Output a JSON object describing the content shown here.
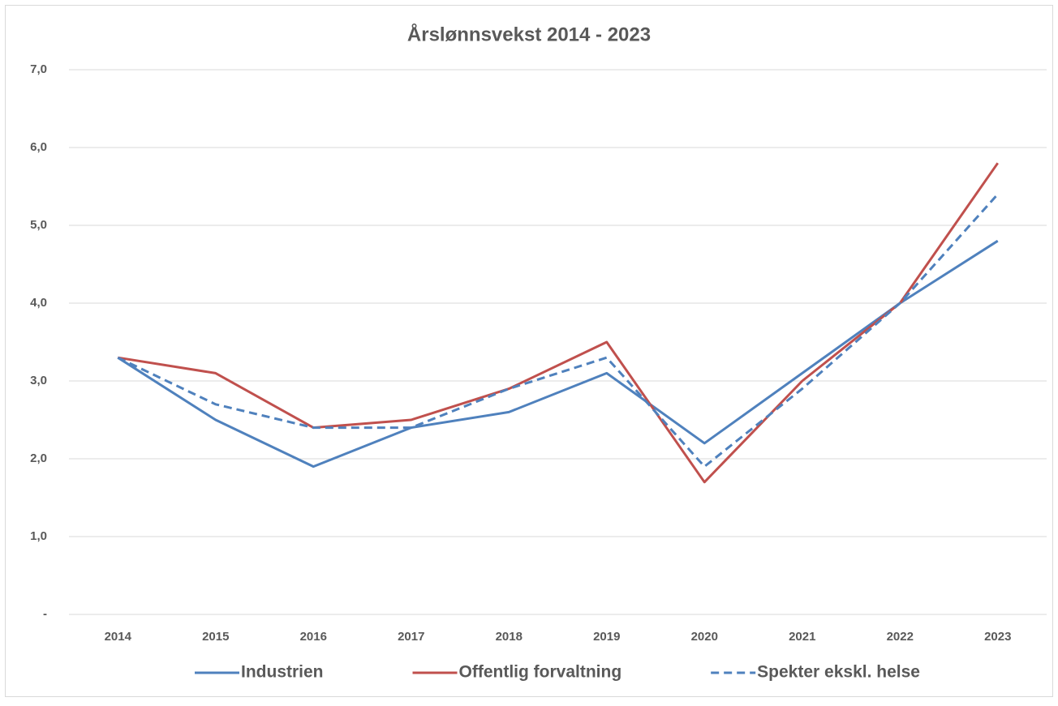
{
  "chart_data": {
    "type": "line",
    "title": "Årslønnsvekst 2014 - 2023",
    "categories": [
      "2014",
      "2015",
      "2016",
      "2017",
      "2018",
      "2019",
      "2020",
      "2021",
      "2022",
      "2023"
    ],
    "series": [
      {
        "name": "Industrien",
        "color": "#4f81bd",
        "dashed": false,
        "values": [
          3.3,
          2.5,
          1.9,
          2.4,
          2.6,
          3.1,
          2.2,
          3.1,
          4.0,
          4.8
        ]
      },
      {
        "name": "Offentlig forvaltning",
        "color": "#c0504d",
        "dashed": false,
        "values": [
          3.3,
          3.1,
          2.4,
          2.5,
          2.9,
          3.5,
          1.7,
          3.0,
          4.0,
          5.8
        ]
      },
      {
        "name": "Spekter ekskl. helse",
        "color": "#4f81bd",
        "dashed": true,
        "values": [
          3.3,
          2.7,
          2.4,
          2.4,
          2.9,
          3.3,
          1.9,
          2.9,
          4.0,
          5.4
        ]
      }
    ],
    "ylim": [
      0,
      7
    ],
    "yticks": [
      {
        "value": 0,
        "label": "-"
      },
      {
        "value": 1,
        "label": "1,0"
      },
      {
        "value": 2,
        "label": "2,0"
      },
      {
        "value": 3,
        "label": "3,0"
      },
      {
        "value": 4,
        "label": "4,0"
      },
      {
        "value": 5,
        "label": "5,0"
      },
      {
        "value": 6,
        "label": "6,0"
      },
      {
        "value": 7,
        "label": "7,0"
      }
    ],
    "grid": true,
    "legend": "bottom"
  }
}
